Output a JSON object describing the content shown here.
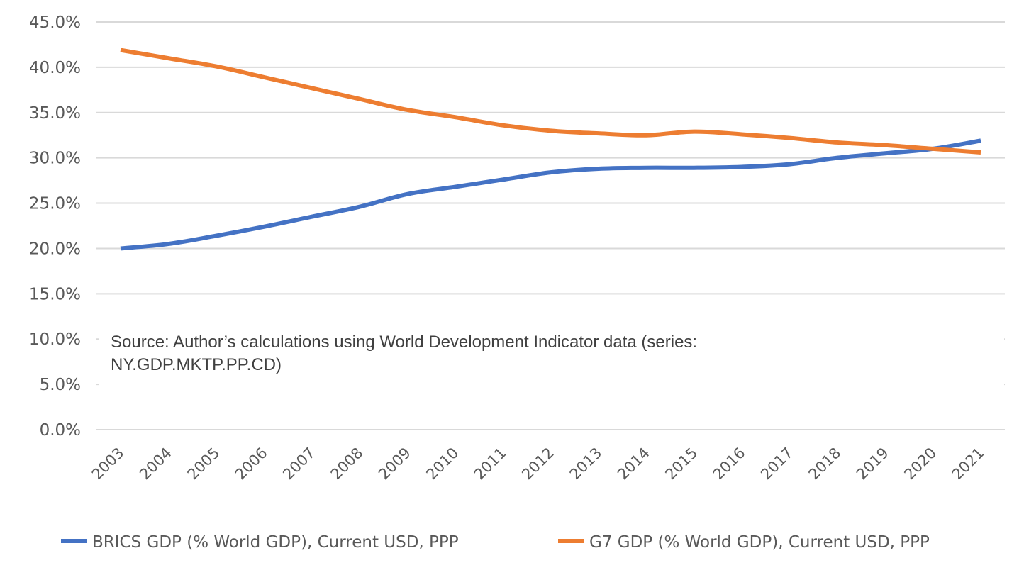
{
  "chart_data": {
    "type": "line",
    "title": "",
    "xlabel": "",
    "ylabel": "",
    "x": [
      "2003",
      "2004",
      "2005",
      "2006",
      "2007",
      "2008",
      "2009",
      "2010",
      "2011",
      "2012",
      "2013",
      "2014",
      "2015",
      "2016",
      "2017",
      "2018",
      "2019",
      "2020",
      "2021"
    ],
    "ylim": [
      0,
      45
    ],
    "yticks": [
      0,
      5,
      10,
      15,
      20,
      25,
      30,
      35,
      40,
      45
    ],
    "ytick_labels": [
      "0.0%",
      "5.0%",
      "10.0%",
      "15.0%",
      "20.0%",
      "25.0%",
      "30.0%",
      "35.0%",
      "40.0%",
      "45.0%"
    ],
    "grid": true,
    "hidden_gridlines": [
      5,
      10
    ],
    "legend_position": "bottom",
    "series": [
      {
        "name": "BRICS GDP (% World GDP), Current USD, PPP",
        "color": "#4472C4",
        "values": [
          20.0,
          20.5,
          21.4,
          22.4,
          23.5,
          24.6,
          26.0,
          26.8,
          27.6,
          28.4,
          28.8,
          28.9,
          28.9,
          29.0,
          29.3,
          30.0,
          30.5,
          31.0,
          31.9
        ]
      },
      {
        "name": "G7 GDP (% World GDP), Current USD, PPP",
        "color": "#ED7D31",
        "values": [
          41.9,
          41.0,
          40.1,
          38.9,
          37.7,
          36.5,
          35.3,
          34.5,
          33.6,
          33.0,
          32.7,
          32.5,
          32.9,
          32.6,
          32.2,
          31.7,
          31.4,
          31.0,
          30.6
        ]
      }
    ],
    "annotations": [
      {
        "lines": [
          "Source: Author’s calculations using World Development Indicator data (series:",
          "NY.GDP.MKTP.PP.CD)"
        ]
      }
    ]
  }
}
